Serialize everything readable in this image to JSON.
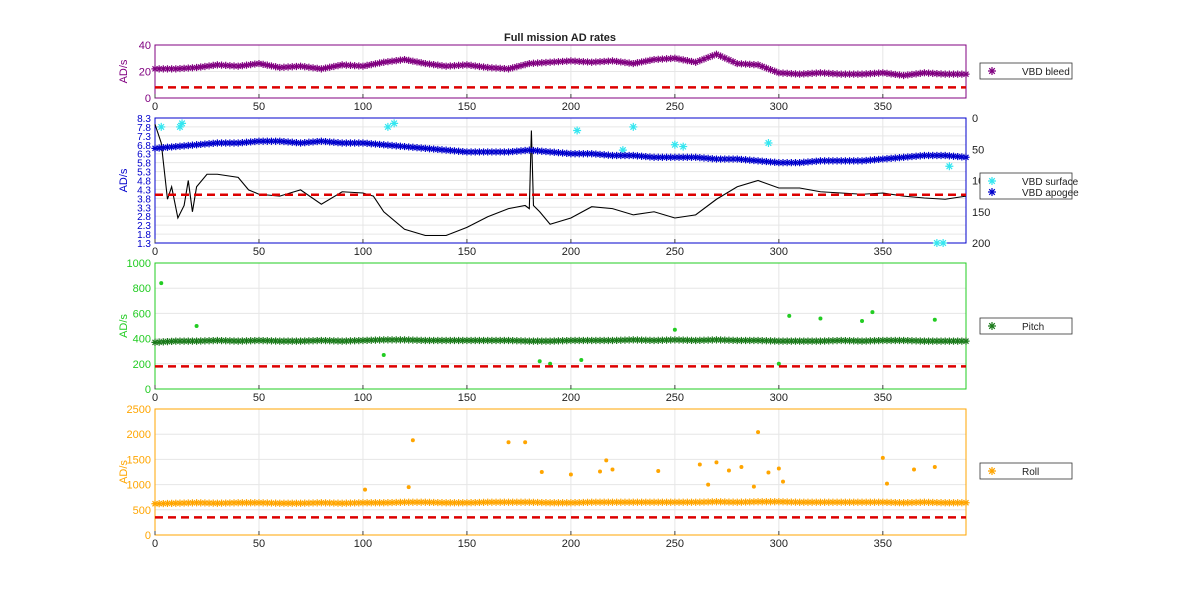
{
  "figure": {
    "title": "Full mission AD rates"
  },
  "colors": {
    "purple": "#800080",
    "blue": "#0000cc",
    "cyan": "#33e6f0",
    "green": "#22cc22",
    "darkgreen": "#1a7a1a",
    "orange": "#ffa500",
    "red": "#dd0000",
    "axis_gray": "#4d4d4d"
  },
  "chart_data": [
    {
      "type": "scatter",
      "title": "Full mission AD rates",
      "ylabel": "AD/s",
      "xlim": [
        0,
        390
      ],
      "ylim": [
        0,
        40
      ],
      "x_ticks": [
        0,
        50,
        100,
        150,
        200,
        250,
        300,
        350
      ],
      "y_ticks": [
        0,
        20,
        40
      ],
      "grid": true,
      "legend_position": "outside-right",
      "threshold": 8,
      "series": [
        {
          "name": "VBD bleed",
          "marker": "asterisk",
          "color": "#800080",
          "x": [
            0,
            10,
            20,
            30,
            40,
            50,
            60,
            70,
            80,
            90,
            100,
            110,
            120,
            130,
            140,
            150,
            160,
            170,
            180,
            190,
            200,
            210,
            220,
            230,
            240,
            250,
            260,
            270,
            280,
            290,
            300,
            310,
            320,
            330,
            340,
            350,
            360,
            370,
            380,
            390
          ],
          "y": [
            22,
            22,
            23,
            25,
            24,
            26,
            23,
            24,
            22,
            25,
            24,
            27,
            29,
            26,
            24,
            25,
            23,
            22,
            26,
            27,
            28,
            27,
            28,
            26,
            29,
            30,
            27,
            33,
            26,
            25,
            19,
            18,
            19,
            18,
            18,
            19,
            17,
            19,
            18,
            18
          ]
        }
      ]
    },
    {
      "type": "scatter",
      "ylabel": "AD/s",
      "xlim": [
        0,
        390
      ],
      "ylim": [
        1.3,
        8.3
      ],
      "x_ticks": [
        0,
        50,
        100,
        150,
        200,
        250,
        300,
        350
      ],
      "y_ticks": [
        1.3,
        1.8,
        2.3,
        2.8,
        3.3,
        3.8,
        4.3,
        4.8,
        5.3,
        5.8,
        6.3,
        6.8,
        7.3,
        7.8,
        8.3
      ],
      "y2_ticks": [
        0,
        50,
        100,
        150,
        200
      ],
      "y2_lim": [
        0,
        200
      ],
      "grid": true,
      "legend_position": "outside-right",
      "threshold": 4.0,
      "series": [
        {
          "name": "VBD surface",
          "marker": "asterisk",
          "color": "#33e6f0",
          "x": [
            3,
            12,
            13,
            112,
            115,
            203,
            225,
            230,
            250,
            254,
            295,
            376,
            379,
            382
          ],
          "y": [
            7.8,
            7.8,
            8.0,
            7.8,
            8.0,
            7.6,
            6.5,
            7.8,
            6.8,
            6.7,
            6.9,
            1.3,
            1.3,
            5.6
          ]
        },
        {
          "name": "VBD apogee",
          "marker": "asterisk",
          "color": "#0000cc",
          "x": [
            0,
            10,
            20,
            30,
            40,
            50,
            60,
            70,
            80,
            90,
            100,
            110,
            120,
            130,
            140,
            150,
            160,
            170,
            180,
            190,
            200,
            210,
            220,
            230,
            240,
            250,
            260,
            270,
            280,
            290,
            300,
            310,
            320,
            330,
            340,
            350,
            360,
            370,
            380,
            390
          ],
          "y": [
            6.6,
            6.7,
            6.8,
            6.9,
            6.9,
            7.0,
            7.0,
            6.9,
            7.0,
            6.9,
            6.9,
            6.8,
            6.7,
            6.6,
            6.5,
            6.4,
            6.4,
            6.4,
            6.5,
            6.4,
            6.3,
            6.3,
            6.2,
            6.2,
            6.1,
            6.1,
            6.1,
            6.0,
            6.0,
            5.9,
            5.8,
            5.8,
            5.9,
            5.9,
            5.9,
            6.0,
            6.1,
            6.2,
            6.2,
            6.1
          ]
        }
      ],
      "depth_line": {
        "x": [
          0,
          3,
          6,
          8,
          11,
          14,
          16,
          18,
          20,
          25,
          30,
          40,
          45,
          50,
          60,
          70,
          80,
          90,
          100,
          105,
          110,
          120,
          130,
          140,
          150,
          160,
          170,
          178,
          180,
          181,
          182,
          185,
          190,
          200,
          210,
          220,
          230,
          240,
          250,
          260,
          270,
          280,
          290,
          300,
          310,
          320,
          330,
          340,
          350,
          360,
          370,
          380,
          390
        ],
        "y": [
          10,
          40,
          130,
          110,
          160,
          140,
          100,
          150,
          110,
          90,
          90,
          95,
          115,
          122,
          125,
          115,
          138,
          118,
          120,
          125,
          150,
          178,
          188,
          188,
          175,
          158,
          145,
          140,
          145,
          20,
          140,
          150,
          170,
          160,
          142,
          145,
          155,
          150,
          160,
          155,
          130,
          110,
          100,
          112,
          112,
          118,
          120,
          122,
          120,
          125,
          128,
          130,
          125
        ]
      }
    },
    {
      "type": "scatter",
      "ylabel": "AD/s",
      "xlim": [
        0,
        390
      ],
      "ylim": [
        0,
        1000
      ],
      "x_ticks": [
        0,
        50,
        100,
        150,
        200,
        250,
        300,
        350
      ],
      "y_ticks": [
        0,
        200,
        400,
        600,
        800,
        1000
      ],
      "grid": true,
      "legend_position": "outside-right",
      "threshold": 180,
      "series": [
        {
          "name": "Pitch",
          "marker": "asterisk",
          "color": "#1a7a1a",
          "x": [
            0,
            10,
            20,
            30,
            40,
            50,
            60,
            70,
            80,
            90,
            100,
            110,
            120,
            130,
            140,
            150,
            160,
            170,
            180,
            190,
            200,
            210,
            220,
            230,
            240,
            250,
            260,
            270,
            280,
            290,
            300,
            310,
            320,
            330,
            340,
            350,
            360,
            370,
            380,
            390
          ],
          "y": [
            370,
            380,
            380,
            385,
            380,
            385,
            380,
            380,
            385,
            380,
            385,
            390,
            390,
            385,
            385,
            385,
            385,
            385,
            380,
            380,
            385,
            385,
            385,
            390,
            385,
            390,
            385,
            390,
            385,
            385,
            380,
            380,
            380,
            385,
            380,
            385,
            385,
            380,
            380,
            380
          ]
        }
      ],
      "outliers": {
        "x": [
          3,
          20,
          110,
          185,
          190,
          205,
          250,
          300,
          305,
          320,
          340,
          345,
          375
        ],
        "y": [
          840,
          500,
          270,
          220,
          200,
          230,
          470,
          200,
          580,
          560,
          540,
          610,
          550
        ]
      }
    },
    {
      "type": "scatter",
      "ylabel": "AD/s",
      "xlim": [
        0,
        390
      ],
      "ylim": [
        0,
        2500
      ],
      "x_ticks": [
        0,
        50,
        100,
        150,
        200,
        250,
        300,
        350
      ],
      "y_ticks": [
        0,
        500,
        1000,
        1500,
        2000,
        2500
      ],
      "grid": true,
      "legend_position": "outside-right",
      "threshold": 350,
      "series": [
        {
          "name": "Roll",
          "marker": "asterisk",
          "color": "#ffa500",
          "x": [
            0,
            10,
            20,
            30,
            40,
            50,
            60,
            70,
            80,
            90,
            100,
            110,
            120,
            130,
            140,
            150,
            160,
            170,
            180,
            190,
            200,
            210,
            220,
            230,
            240,
            250,
            260,
            270,
            280,
            290,
            300,
            310,
            320,
            330,
            340,
            350,
            360,
            370,
            380,
            390
          ],
          "y": [
            620,
            630,
            640,
            630,
            640,
            640,
            630,
            630,
            640,
            630,
            640,
            640,
            650,
            650,
            640,
            640,
            650,
            650,
            650,
            640,
            640,
            650,
            650,
            650,
            650,
            650,
            650,
            660,
            650,
            660,
            660,
            650,
            650,
            650,
            650,
            650,
            640,
            650,
            640,
            640
          ]
        }
      ],
      "outliers": {
        "x": [
          101,
          122,
          124,
          170,
          178,
          186,
          200,
          214,
          217,
          220,
          242,
          262,
          266,
          270,
          276,
          282,
          288,
          290,
          295,
          300,
          302,
          350,
          352,
          365,
          375
        ],
        "y": [
          900,
          950,
          1880,
          1840,
          1840,
          1250,
          1200,
          1260,
          1480,
          1300,
          1270,
          1400,
          1000,
          1440,
          1280,
          1350,
          960,
          2040,
          1240,
          1320,
          1060,
          1530,
          1020,
          1300,
          1350
        ]
      }
    }
  ]
}
